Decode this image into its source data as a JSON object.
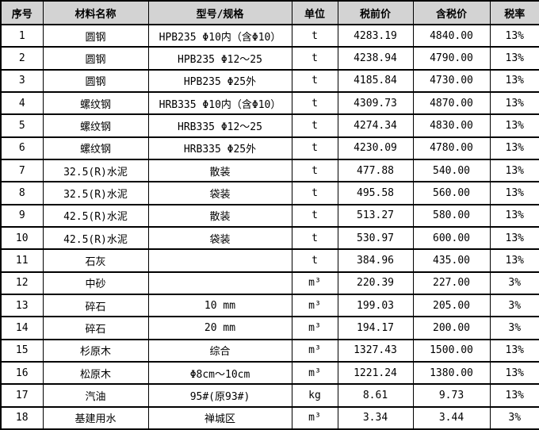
{
  "colors": {
    "header_bg": "#d3d3d3",
    "body_bg": "#ffffff",
    "border": "#000000",
    "text": "#000000"
  },
  "table": {
    "headers": [
      "序号",
      "材料名称",
      "型号/规格",
      "单位",
      "税前价",
      "含税价",
      "税率"
    ],
    "col_semantics": [
      "row-number",
      "material-name",
      "model-spec",
      "unit",
      "pretax-price",
      "tax-included-price",
      "tax-rate"
    ],
    "rows": [
      [
        "1",
        "圆钢",
        "HPB235 Φ10内（含Φ10）",
        "t",
        "4283.19",
        "4840.00",
        "13%"
      ],
      [
        "2",
        "圆钢",
        "HPB235 Φ12～25",
        "t",
        "4238.94",
        "4790.00",
        "13%"
      ],
      [
        "3",
        "圆钢",
        "HPB235 Φ25外",
        "t",
        "4185.84",
        "4730.00",
        "13%"
      ],
      [
        "4",
        "螺纹钢",
        "HRB335 Φ10内（含Φ10）",
        "t",
        "4309.73",
        "4870.00",
        "13%"
      ],
      [
        "5",
        "螺纹钢",
        "HRB335 Φ12～25",
        "t",
        "4274.34",
        "4830.00",
        "13%"
      ],
      [
        "6",
        "螺纹钢",
        "HRB335 Φ25外",
        "t",
        "4230.09",
        "4780.00",
        "13%"
      ],
      [
        "7",
        "32.5(R)水泥",
        "散装",
        "t",
        "477.88",
        "540.00",
        "13%"
      ],
      [
        "8",
        "32.5(R)水泥",
        "袋装",
        "t",
        "495.58",
        "560.00",
        "13%"
      ],
      [
        "9",
        "42.5(R)水泥",
        "散装",
        "t",
        "513.27",
        "580.00",
        "13%"
      ],
      [
        "10",
        "42.5(R)水泥",
        "袋装",
        "t",
        "530.97",
        "600.00",
        "13%"
      ],
      [
        "11",
        "石灰",
        "",
        "t",
        "384.96",
        "435.00",
        "13%"
      ],
      [
        "12",
        "中砂",
        "",
        "m³",
        "220.39",
        "227.00",
        "3%"
      ],
      [
        "13",
        "碎石",
        "10 mm",
        "m³",
        "199.03",
        "205.00",
        "3%"
      ],
      [
        "14",
        "碎石",
        "20 mm",
        "m³",
        "194.17",
        "200.00",
        "3%"
      ],
      [
        "15",
        "杉原木",
        "综合",
        "m³",
        "1327.43",
        "1500.00",
        "13%"
      ],
      [
        "16",
        "松原木",
        "Φ8cm～10cm",
        "m³",
        "1221.24",
        "1380.00",
        "13%"
      ],
      [
        "17",
        "汽油",
        "95#(原93#)",
        "kg",
        "8.61",
        "9.73",
        "13%"
      ],
      [
        "18",
        "基建用水",
        "禅城区",
        "m³",
        "3.34",
        "3.44",
        "3%"
      ]
    ]
  }
}
